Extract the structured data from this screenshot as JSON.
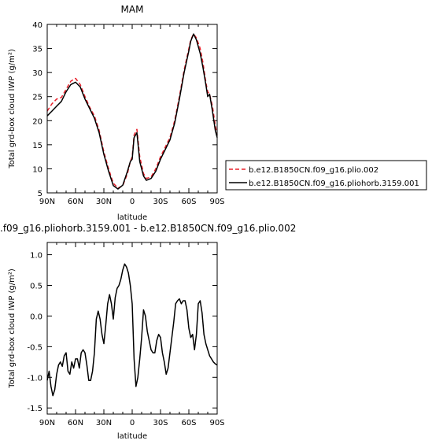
{
  "chart_data": [
    {
      "type": "line",
      "title": "MAM",
      "xlabel": "latitude",
      "ylabel": "Total grd-box cloud IWP (g/m²)",
      "xlim": [
        90,
        -90
      ],
      "ylim": [
        5,
        40
      ],
      "x_ticks": [
        {
          "value": 90,
          "label": "90N"
        },
        {
          "value": 60,
          "label": "60N"
        },
        {
          "value": 30,
          "label": "30N"
        },
        {
          "value": 0,
          "label": "0"
        },
        {
          "value": -30,
          "label": "30S"
        },
        {
          "value": -60,
          "label": "60S"
        },
        {
          "value": -90,
          "label": "90S"
        }
      ],
      "y_ticks": [
        5,
        10,
        15,
        20,
        25,
        30,
        35,
        40
      ],
      "legend": {
        "placement": "outside-right"
      },
      "series": [
        {
          "name": "b.e12.B1850CN.f09_g16.plio.002",
          "color": "#e8202a",
          "dash": "dashed",
          "x": [
            90,
            85,
            80,
            75,
            70,
            65,
            60,
            55,
            50,
            45,
            40,
            35,
            30,
            25,
            20,
            15,
            10,
            5,
            2,
            0,
            -2,
            -5,
            -8,
            -12,
            -15,
            -20,
            -25,
            -30,
            -35,
            -40,
            -45,
            -50,
            -55,
            -60,
            -62,
            -65,
            -68,
            -72,
            -75,
            -78,
            -80,
            -82,
            -85,
            -88,
            -90
          ],
          "values": [
            22.0,
            23.5,
            24.5,
            24.8,
            26.5,
            28.2,
            28.8,
            27.5,
            25.0,
            22.8,
            21.0,
            18.0,
            13.5,
            10.0,
            7.0,
            6.0,
            6.5,
            9.0,
            11.5,
            12.5,
            17.0,
            18.2,
            12.5,
            9.0,
            8.0,
            8.3,
            10.0,
            12.5,
            14.5,
            16.5,
            20.0,
            25.0,
            30.5,
            35.0,
            36.8,
            38.0,
            37.2,
            35.0,
            32.0,
            28.0,
            26.0,
            25.5,
            23.0,
            19.0,
            17.0
          ]
        },
        {
          "name": "b.e12.B1850CN.f09_g16.pliohorb.3159.001",
          "color": "#000000",
          "dash": "solid",
          "x": [
            90,
            85,
            80,
            75,
            70,
            65,
            60,
            55,
            50,
            45,
            40,
            35,
            30,
            25,
            20,
            15,
            10,
            5,
            2,
            0,
            -2,
            -5,
            -8,
            -12,
            -15,
            -20,
            -25,
            -30,
            -35,
            -40,
            -45,
            -50,
            -55,
            -60,
            -62,
            -65,
            -68,
            -72,
            -75,
            -78,
            -80,
            -82,
            -85,
            -88,
            -90
          ],
          "values": [
            21.0,
            22.0,
            23.0,
            24.0,
            26.0,
            27.5,
            28.0,
            27.0,
            24.5,
            22.5,
            20.5,
            17.5,
            13.0,
            9.5,
            6.5,
            5.8,
            6.6,
            9.5,
            11.5,
            12.0,
            16.5,
            17.5,
            11.5,
            8.5,
            7.6,
            8.0,
            9.5,
            12.0,
            14.0,
            16.0,
            19.5,
            24.5,
            30.0,
            34.5,
            36.5,
            38.0,
            36.8,
            34.0,
            31.0,
            27.5,
            25.0,
            25.5,
            22.0,
            18.0,
            16.5
          ]
        }
      ]
    },
    {
      "type": "line",
      "title": ".f09_g16.pliohorb.3159.001 - b.e12.B1850CN.f09_g16.plio.002",
      "xlabel": "latitude",
      "ylabel": "Total grd-box cloud IWP (g/m²)",
      "xlim": [
        90,
        -90
      ],
      "ylim": [
        -1.6,
        1.2
      ],
      "x_ticks": [
        {
          "value": 90,
          "label": "90N"
        },
        {
          "value": 60,
          "label": "60N"
        },
        {
          "value": 30,
          "label": "30N"
        },
        {
          "value": 0,
          "label": "0"
        },
        {
          "value": -30,
          "label": "30S"
        },
        {
          "value": -60,
          "label": "60S"
        },
        {
          "value": -90,
          "label": "90S"
        }
      ],
      "y_ticks": [
        {
          "value": 1.0,
          "label": "1.0"
        },
        {
          "value": 0.5,
          "label": "0.5"
        },
        {
          "value": 0.0,
          "label": "0.0"
        },
        {
          "value": -0.5,
          "label": "-0.5"
        },
        {
          "value": -1.0,
          "label": "-1.0"
        },
        {
          "value": -1.5,
          "label": "-1.5"
        }
      ],
      "series": [
        {
          "color": "#000000",
          "x": [
            90,
            88,
            86,
            84,
            82,
            80,
            78,
            76,
            74,
            72,
            70,
            68,
            66,
            64,
            62,
            60,
            58,
            56,
            54,
            52,
            50,
            48,
            46,
            44,
            42,
            40,
            38,
            36,
            34,
            32,
            30,
            28,
            26,
            24,
            22,
            20,
            18,
            16,
            14,
            12,
            10,
            8,
            6,
            4,
            2,
            0,
            -2,
            -4,
            -6,
            -8,
            -10,
            -12,
            -14,
            -16,
            -18,
            -20,
            -22,
            -24,
            -26,
            -28,
            -30,
            -32,
            -34,
            -36,
            -38,
            -40,
            -42,
            -44,
            -46,
            -48,
            -50,
            -52,
            -54,
            -56,
            -58,
            -60,
            -62,
            -64,
            -66,
            -68,
            -70,
            -72,
            -74,
            -76,
            -78,
            -80,
            -82,
            -84,
            -86,
            -88,
            -90
          ],
          "values": [
            -1.05,
            -0.9,
            -1.15,
            -1.3,
            -1.2,
            -0.95,
            -0.8,
            -0.75,
            -0.82,
            -0.65,
            -0.6,
            -0.9,
            -0.95,
            -0.75,
            -0.85,
            -0.7,
            -0.7,
            -0.85,
            -0.6,
            -0.55,
            -0.6,
            -0.8,
            -1.05,
            -1.05,
            -0.9,
            -0.6,
            -0.05,
            0.08,
            -0.05,
            -0.3,
            -0.45,
            -0.15,
            0.2,
            0.35,
            0.2,
            -0.05,
            0.3,
            0.45,
            0.5,
            0.6,
            0.75,
            0.85,
            0.8,
            0.7,
            0.5,
            0.2,
            -0.7,
            -1.15,
            -1.0,
            -0.7,
            -0.35,
            0.1,
            0.0,
            -0.25,
            -0.4,
            -0.55,
            -0.6,
            -0.6,
            -0.4,
            -0.3,
            -0.35,
            -0.6,
            -0.75,
            -0.95,
            -0.85,
            -0.6,
            -0.35,
            -0.1,
            0.2,
            0.25,
            0.28,
            0.2,
            0.25,
            0.25,
            0.1,
            -0.2,
            -0.35,
            -0.3,
            -0.55,
            -0.3,
            0.2,
            0.25,
            0.05,
            -0.3,
            -0.45,
            -0.55,
            -0.65,
            -0.7,
            -0.75,
            -0.78,
            -0.8
          ]
        }
      ]
    }
  ]
}
